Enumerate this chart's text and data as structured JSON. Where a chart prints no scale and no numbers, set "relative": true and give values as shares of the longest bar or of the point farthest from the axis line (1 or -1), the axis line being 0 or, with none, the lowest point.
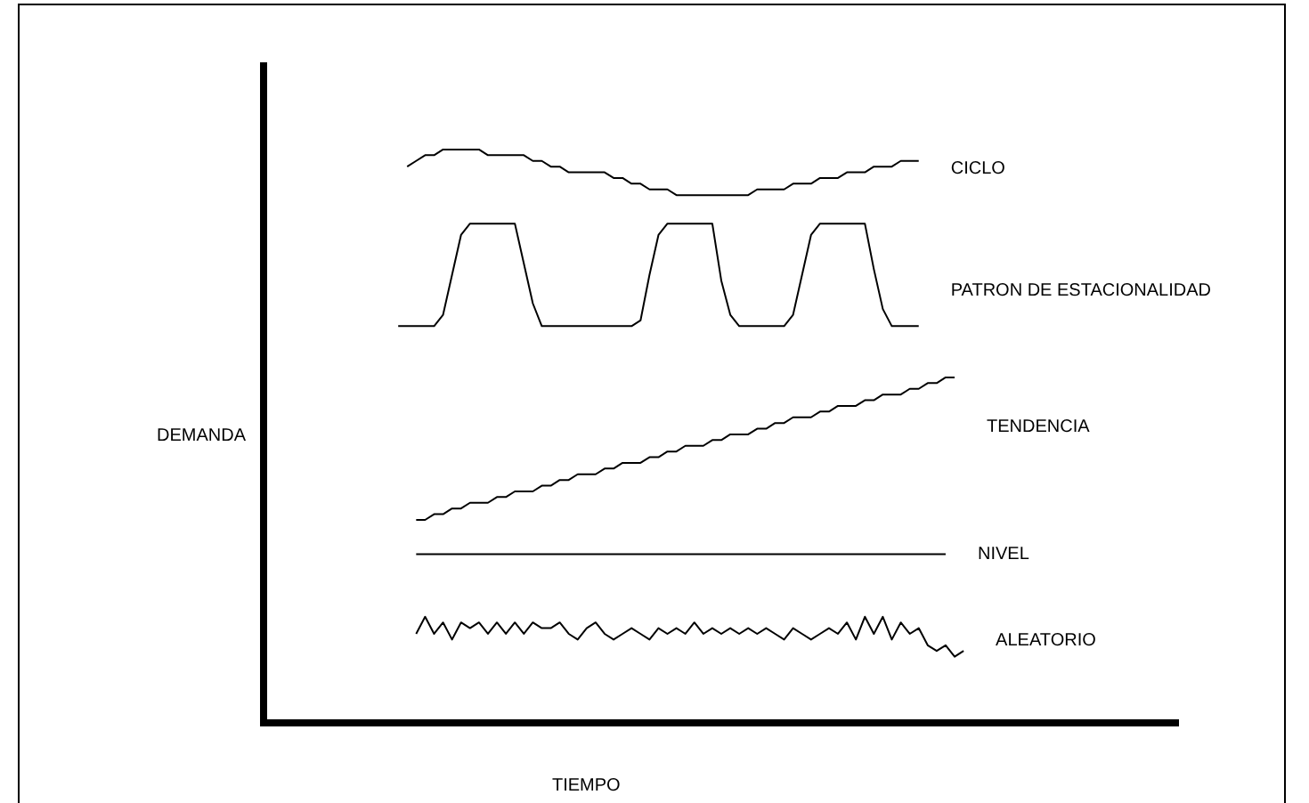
{
  "chart_data": {
    "type": "line",
    "relative": true,
    "xlabel": "TIEMPO",
    "ylabel": "DEMANDA",
    "marker": "none",
    "categories": [
      null,
      null,
      null,
      null,
      null,
      null,
      null,
      null,
      null,
      null,
      null,
      null,
      null,
      null,
      null,
      null,
      null,
      null,
      null,
      null,
      null,
      null,
      null,
      null,
      null,
      null,
      null,
      null,
      null,
      null,
      null,
      null,
      null,
      null,
      null,
      null,
      null,
      null,
      null,
      null,
      null,
      null,
      null,
      null,
      null,
      null,
      null,
      null,
      null,
      null,
      null,
      null,
      null,
      null,
      null,
      null,
      null,
      null,
      null,
      null,
      null,
      null,
      null,
      null,
      null,
      null,
      null,
      null,
      null,
      null,
      null,
      null,
      null,
      null,
      null,
      null,
      null,
      null,
      null,
      null,
      null,
      null,
      null,
      null,
      null,
      null,
      null,
      null,
      null,
      null,
      null,
      null,
      null,
      null,
      null,
      null,
      null,
      null,
      null,
      null,
      null,
      null,
      null
    ],
    "series": [
      {
        "name": "CICLO",
        "color": "#000000",
        "values": [
          null,
          null,
          null,
          null,
          null,
          null,
          null,
          null,
          null,
          null,
          null,
          null,
          null,
          null,
          null,
          null,
          0.97,
          0.98,
          0.99,
          0.99,
          1,
          1,
          1,
          1,
          1,
          0.99,
          0.99,
          0.99,
          0.99,
          0.99,
          0.98,
          0.98,
          0.97,
          0.97,
          0.96,
          0.96,
          0.96,
          0.96,
          0.96,
          0.95,
          0.95,
          0.94,
          0.94,
          0.93,
          0.93,
          0.93,
          0.92,
          0.92,
          0.92,
          0.92,
          0.92,
          0.92,
          0.92,
          0.92,
          0.92,
          0.93,
          0.93,
          0.93,
          0.93,
          0.94,
          0.94,
          0.94,
          0.95,
          0.95,
          0.95,
          0.96,
          0.96,
          0.96,
          0.97,
          0.97,
          0.97,
          0.98,
          0.98,
          0.98,
          null,
          null,
          null,
          null,
          null,
          null,
          null,
          null,
          null,
          null,
          null,
          null,
          null,
          null,
          null,
          null,
          null,
          null,
          null,
          null,
          null,
          null,
          null,
          null,
          null,
          null,
          null,
          null,
          null
        ]
      },
      {
        "name": "PATRON DE ESTACIONALIDAD",
        "color": "#000000",
        "values": [
          null,
          null,
          null,
          null,
          null,
          null,
          null,
          null,
          null,
          null,
          null,
          null,
          null,
          null,
          null,
          0.69,
          0.69,
          0.69,
          0.69,
          0.69,
          0.71,
          0.78,
          0.85,
          0.87,
          0.87,
          0.87,
          0.87,
          0.87,
          0.87,
          0.8,
          0.73,
          0.69,
          0.69,
          0.69,
          0.69,
          0.69,
          0.69,
          0.69,
          0.69,
          0.69,
          0.69,
          0.69,
          0.7,
          0.78,
          0.85,
          0.87,
          0.87,
          0.87,
          0.87,
          0.87,
          0.87,
          0.77,
          0.71,
          0.69,
          0.69,
          0.69,
          0.69,
          0.69,
          0.69,
          0.71,
          0.78,
          0.85,
          0.87,
          0.87,
          0.87,
          0.87,
          0.87,
          0.87,
          0.79,
          0.72,
          0.69,
          0.69,
          0.69,
          0.69,
          null,
          null,
          null,
          null,
          null,
          null,
          null,
          null,
          null,
          null,
          null,
          null,
          null,
          null,
          null,
          null,
          null,
          null,
          null,
          null,
          null,
          null,
          null,
          null,
          null,
          null,
          null,
          null,
          null
        ]
      },
      {
        "name": "TENDENCIA",
        "color": "#000000",
        "values": [
          null,
          null,
          null,
          null,
          null,
          null,
          null,
          null,
          null,
          null,
          null,
          null,
          null,
          null,
          null,
          null,
          null,
          0.35,
          0.35,
          0.36,
          0.36,
          0.37,
          0.37,
          0.38,
          0.38,
          0.38,
          0.39,
          0.39,
          0.4,
          0.4,
          0.4,
          0.41,
          0.41,
          0.42,
          0.42,
          0.43,
          0.43,
          0.43,
          0.44,
          0.44,
          0.45,
          0.45,
          0.45,
          0.46,
          0.46,
          0.47,
          0.47,
          0.48,
          0.48,
          0.48,
          0.49,
          0.49,
          0.5,
          0.5,
          0.5,
          0.51,
          0.51,
          0.52,
          0.52,
          0.53,
          0.53,
          0.53,
          0.54,
          0.54,
          0.55,
          0.55,
          0.55,
          0.56,
          0.56,
          0.57,
          0.57,
          0.57,
          0.58,
          0.58,
          0.59,
          0.59,
          0.6,
          0.6,
          null,
          null,
          null,
          null,
          null,
          null,
          null,
          null,
          null,
          null,
          null,
          null,
          null,
          null,
          null,
          null,
          null,
          null,
          null,
          null,
          null,
          null,
          null,
          null,
          null
        ]
      },
      {
        "name": "NIVEL",
        "color": "#000000",
        "values": [
          null,
          null,
          null,
          null,
          null,
          null,
          null,
          null,
          null,
          null,
          null,
          null,
          null,
          null,
          null,
          null,
          null,
          0.29,
          0.29,
          0.29,
          0.29,
          0.29,
          0.29,
          0.29,
          0.29,
          0.29,
          0.29,
          0.29,
          0.29,
          0.29,
          0.29,
          0.29,
          0.29,
          0.29,
          0.29,
          0.29,
          0.29,
          0.29,
          0.29,
          0.29,
          0.29,
          0.29,
          0.29,
          0.29,
          0.29,
          0.29,
          0.29,
          0.29,
          0.29,
          0.29,
          0.29,
          0.29,
          0.29,
          0.29,
          0.29,
          0.29,
          0.29,
          0.29,
          0.29,
          0.29,
          0.29,
          0.29,
          0.29,
          0.29,
          0.29,
          0.29,
          0.29,
          0.29,
          0.29,
          0.29,
          0.29,
          0.29,
          0.29,
          0.29,
          0.29,
          0.29,
          0.29,
          null,
          null,
          null,
          null,
          null,
          null,
          null,
          null,
          null,
          null,
          null,
          null,
          null,
          null,
          null,
          null,
          null,
          null,
          null,
          null,
          null,
          null,
          null,
          null,
          null,
          null
        ]
      },
      {
        "name": "ALEATORIO",
        "color": "#000000",
        "values": [
          null,
          null,
          null,
          null,
          null,
          null,
          null,
          null,
          null,
          null,
          null,
          null,
          null,
          null,
          null,
          null,
          null,
          0.15,
          0.18,
          0.15,
          0.17,
          0.14,
          0.17,
          0.16,
          0.17,
          0.15,
          0.17,
          0.15,
          0.17,
          0.15,
          0.17,
          0.16,
          0.16,
          0.17,
          0.15,
          0.14,
          0.16,
          0.17,
          0.15,
          0.14,
          0.15,
          0.16,
          0.15,
          0.14,
          0.16,
          0.15,
          0.16,
          0.15,
          0.17,
          0.15,
          0.16,
          0.15,
          0.16,
          0.15,
          0.16,
          0.15,
          0.16,
          0.15,
          0.14,
          0.16,
          0.15,
          0.14,
          0.15,
          0.16,
          0.15,
          0.17,
          0.14,
          0.18,
          0.15,
          0.18,
          0.14,
          0.17,
          0.15,
          0.16,
          0.13,
          0.12,
          0.13,
          0.11,
          0.12,
          null,
          null,
          null,
          null,
          null,
          null,
          null,
          null,
          null,
          null,
          null,
          null,
          null,
          null,
          null,
          null,
          null,
          null,
          null,
          null,
          null,
          null,
          null,
          null
        ]
      }
    ]
  }
}
